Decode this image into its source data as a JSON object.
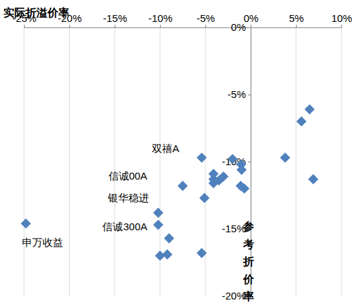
{
  "chart_data": {
    "type": "scatter",
    "x_label": "参考折价率",
    "y_label": "实际折溢价率",
    "x": [
      -24.8,
      -10.2,
      -10.2,
      -9.0,
      -10.0,
      -9.2,
      -5.4,
      -7.5,
      -5.4,
      -5.1,
      -4.1,
      -4.1,
      -4.1,
      -3.5,
      -3.0,
      -2.0,
      -1.05,
      -1.0,
      -1.1,
      -0.7,
      3.8,
      5.6,
      6.5,
      6.9
    ],
    "values": [
      -14.6,
      -13.8,
      -14.7,
      -15.7,
      -17.0,
      -16.9,
      -16.8,
      -11.8,
      -9.7,
      -12.7,
      -10.9,
      -11.3,
      -11.6,
      -11.4,
      -11.1,
      -9.8,
      -10.2,
      -10.6,
      -11.8,
      -12.0,
      -9.7,
      -7.0,
      -6.1,
      -11.3
    ],
    "color": "#4f81bd",
    "marker": "diamond",
    "annotations": [
      "双禧A",
      "信诚00A",
      "银华稳进",
      "信诚300A",
      "申万收益"
    ],
    "xlim": [
      -25,
      10
    ],
    "xticks": [
      {
        "value": -25,
        "label": "-25%"
      },
      {
        "value": -20,
        "label": "-20%"
      },
      {
        "value": -15,
        "label": "-15%"
      },
      {
        "value": -10,
        "label": "-10%"
      },
      {
        "value": -5,
        "label": "-5%"
      },
      {
        "value": 0,
        "label": "0%"
      },
      {
        "value": 5,
        "label": "5%"
      },
      {
        "value": 10,
        "label": "10%"
      }
    ],
    "ylim": [
      -20,
      0
    ],
    "yticks": [
      {
        "value": 0,
        "label": "0%"
      },
      {
        "value": -5,
        "label": "-5%"
      },
      {
        "value": -10,
        "label": "-10%"
      },
      {
        "value": -15,
        "label": "-15%"
      },
      {
        "value": -20,
        "label": "-20%"
      }
    ],
    "grid": "x"
  }
}
